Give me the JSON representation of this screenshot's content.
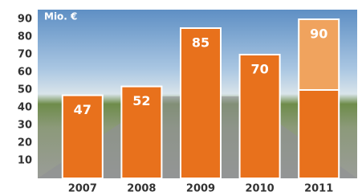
{
  "chart_data": {
    "type": "bar",
    "unit_label": "Mio. €",
    "categories": [
      "2007",
      "2008",
      "2009",
      "2010",
      "2011"
    ],
    "series": [
      {
        "color": "#e8711c",
        "values": [
          47,
          52,
          85,
          70,
          50
        ]
      },
      {
        "color": "#f0a35e",
        "values": [
          null,
          null,
          null,
          null,
          40
        ]
      }
    ],
    "totals": [
      47,
      52,
      85,
      70,
      90
    ],
    "ylim": [
      0,
      90
    ],
    "yticks": [
      10,
      20,
      30,
      40,
      50,
      60,
      70,
      80,
      90
    ]
  }
}
